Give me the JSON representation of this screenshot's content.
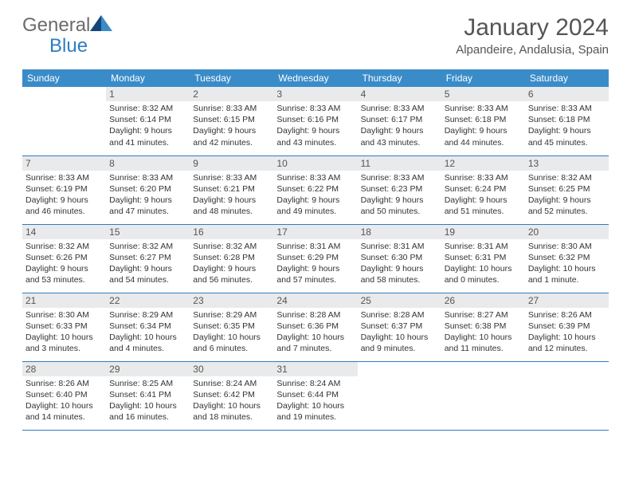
{
  "logo": {
    "part1": "General",
    "part2": "Blue"
  },
  "title": "January 2024",
  "location": "Alpandeire, Andalusia, Spain",
  "colors": {
    "header_bg": "#3a8cc9",
    "header_text": "#ffffff",
    "daynum_bg": "#e9eaeb",
    "rule": "#2d7dc1",
    "brand_gray": "#6b6b6b",
    "brand_blue": "#2d7dc1"
  },
  "weekdays": [
    "Sunday",
    "Monday",
    "Tuesday",
    "Wednesday",
    "Thursday",
    "Friday",
    "Saturday"
  ],
  "grid": [
    [
      null,
      {
        "n": "1",
        "sr": "8:32 AM",
        "ss": "6:14 PM",
        "dl": "9 hours and 41 minutes."
      },
      {
        "n": "2",
        "sr": "8:33 AM",
        "ss": "6:15 PM",
        "dl": "9 hours and 42 minutes."
      },
      {
        "n": "3",
        "sr": "8:33 AM",
        "ss": "6:16 PM",
        "dl": "9 hours and 43 minutes."
      },
      {
        "n": "4",
        "sr": "8:33 AM",
        "ss": "6:17 PM",
        "dl": "9 hours and 43 minutes."
      },
      {
        "n": "5",
        "sr": "8:33 AM",
        "ss": "6:18 PM",
        "dl": "9 hours and 44 minutes."
      },
      {
        "n": "6",
        "sr": "8:33 AM",
        "ss": "6:18 PM",
        "dl": "9 hours and 45 minutes."
      }
    ],
    [
      {
        "n": "7",
        "sr": "8:33 AM",
        "ss": "6:19 PM",
        "dl": "9 hours and 46 minutes."
      },
      {
        "n": "8",
        "sr": "8:33 AM",
        "ss": "6:20 PM",
        "dl": "9 hours and 47 minutes."
      },
      {
        "n": "9",
        "sr": "8:33 AM",
        "ss": "6:21 PM",
        "dl": "9 hours and 48 minutes."
      },
      {
        "n": "10",
        "sr": "8:33 AM",
        "ss": "6:22 PM",
        "dl": "9 hours and 49 minutes."
      },
      {
        "n": "11",
        "sr": "8:33 AM",
        "ss": "6:23 PM",
        "dl": "9 hours and 50 minutes."
      },
      {
        "n": "12",
        "sr": "8:33 AM",
        "ss": "6:24 PM",
        "dl": "9 hours and 51 minutes."
      },
      {
        "n": "13",
        "sr": "8:32 AM",
        "ss": "6:25 PM",
        "dl": "9 hours and 52 minutes."
      }
    ],
    [
      {
        "n": "14",
        "sr": "8:32 AM",
        "ss": "6:26 PM",
        "dl": "9 hours and 53 minutes."
      },
      {
        "n": "15",
        "sr": "8:32 AM",
        "ss": "6:27 PM",
        "dl": "9 hours and 54 minutes."
      },
      {
        "n": "16",
        "sr": "8:32 AM",
        "ss": "6:28 PM",
        "dl": "9 hours and 56 minutes."
      },
      {
        "n": "17",
        "sr": "8:31 AM",
        "ss": "6:29 PM",
        "dl": "9 hours and 57 minutes."
      },
      {
        "n": "18",
        "sr": "8:31 AM",
        "ss": "6:30 PM",
        "dl": "9 hours and 58 minutes."
      },
      {
        "n": "19",
        "sr": "8:31 AM",
        "ss": "6:31 PM",
        "dl": "10 hours and 0 minutes."
      },
      {
        "n": "20",
        "sr": "8:30 AM",
        "ss": "6:32 PM",
        "dl": "10 hours and 1 minute."
      }
    ],
    [
      {
        "n": "21",
        "sr": "8:30 AM",
        "ss": "6:33 PM",
        "dl": "10 hours and 3 minutes."
      },
      {
        "n": "22",
        "sr": "8:29 AM",
        "ss": "6:34 PM",
        "dl": "10 hours and 4 minutes."
      },
      {
        "n": "23",
        "sr": "8:29 AM",
        "ss": "6:35 PM",
        "dl": "10 hours and 6 minutes."
      },
      {
        "n": "24",
        "sr": "8:28 AM",
        "ss": "6:36 PM",
        "dl": "10 hours and 7 minutes."
      },
      {
        "n": "25",
        "sr": "8:28 AM",
        "ss": "6:37 PM",
        "dl": "10 hours and 9 minutes."
      },
      {
        "n": "26",
        "sr": "8:27 AM",
        "ss": "6:38 PM",
        "dl": "10 hours and 11 minutes."
      },
      {
        "n": "27",
        "sr": "8:26 AM",
        "ss": "6:39 PM",
        "dl": "10 hours and 12 minutes."
      }
    ],
    [
      {
        "n": "28",
        "sr": "8:26 AM",
        "ss": "6:40 PM",
        "dl": "10 hours and 14 minutes."
      },
      {
        "n": "29",
        "sr": "8:25 AM",
        "ss": "6:41 PM",
        "dl": "10 hours and 16 minutes."
      },
      {
        "n": "30",
        "sr": "8:24 AM",
        "ss": "6:42 PM",
        "dl": "10 hours and 18 minutes."
      },
      {
        "n": "31",
        "sr": "8:24 AM",
        "ss": "6:44 PM",
        "dl": "10 hours and 19 minutes."
      },
      null,
      null,
      null
    ]
  ],
  "labels": {
    "sunrise": "Sunrise: ",
    "sunset": "Sunset: ",
    "daylight": "Daylight: "
  }
}
